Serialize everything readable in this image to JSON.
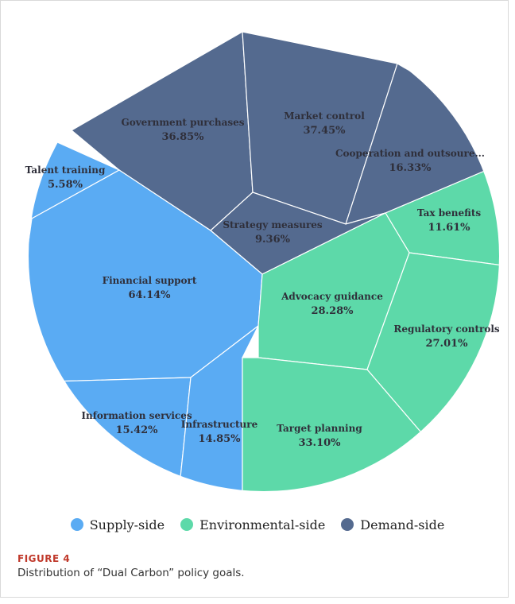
{
  "colors": {
    "supply": "#5aabf3",
    "environmental": "#5dd9a9",
    "demand": "#546a8f",
    "border": "#ffffff"
  },
  "chart_data": {
    "type": "voronoi-treemap",
    "legend": [
      {
        "group": "supply",
        "label": "Supply-side"
      },
      {
        "group": "environmental",
        "label": "Environmental-side"
      },
      {
        "group": "demand",
        "label": "Demand-side"
      }
    ],
    "legend_position": "bottom",
    "cells": [
      {
        "id": "government-purchases",
        "group": "demand",
        "name": "Government purchases",
        "value": "36.85%"
      },
      {
        "id": "market-control",
        "group": "demand",
        "name": "Market control",
        "value": "37.45%"
      },
      {
        "id": "cooperation",
        "group": "demand",
        "name": "Cooperation and outsoure...",
        "value": "16.33%"
      },
      {
        "id": "strategy-measures",
        "group": "demand",
        "name": "Strategy measures",
        "value": "9.36%"
      },
      {
        "id": "talent-training",
        "group": "supply",
        "name": "Talent training",
        "value": "5.58%"
      },
      {
        "id": "financial-support",
        "group": "supply",
        "name": "Financial support",
        "value": "64.14%"
      },
      {
        "id": "information-services",
        "group": "supply",
        "name": "Information services",
        "value": "15.42%"
      },
      {
        "id": "infrastructure",
        "group": "supply",
        "name": "Infrastructure",
        "value": "14.85%"
      },
      {
        "id": "tax-benefits",
        "group": "environmental",
        "name": "Tax benefits",
        "value": "11.61%"
      },
      {
        "id": "advocacy-guidance",
        "group": "environmental",
        "name": "Advocacy guidance",
        "value": "28.28%"
      },
      {
        "id": "regulatory-controls",
        "group": "environmental",
        "name": "Regulatory controls",
        "value": "27.01%"
      },
      {
        "id": "target-planning",
        "group": "environmental",
        "name": "Target planning",
        "value": "33.10%"
      }
    ]
  },
  "figure": {
    "label": "FIGURE 4",
    "caption": "Distribution of “Dual Carbon” policy goals."
  }
}
